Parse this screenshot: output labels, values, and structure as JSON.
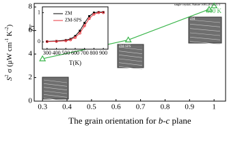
{
  "chart_data": [
    {
      "type": "line",
      "x_label": [
        "The grain orientation for ",
        "b-c",
        " plane"
      ],
      "y_label": [
        "S",
        "2",
        " σ (μW cm",
        "-1",
        " K",
        "-2",
        ")"
      ],
      "xlim": [
        0.266,
        1.047
      ],
      "ylim": [
        0,
        8.3
      ],
      "xticks": [
        0.3,
        0.4,
        0.5,
        0.6,
        0.7,
        0.8,
        0.9,
        1.0
      ],
      "yticks": [
        0,
        2,
        4,
        6,
        8
      ],
      "series": [
        {
          "name": "800 K",
          "color": "#39b54a",
          "x": [
            0.3,
            0.65,
            0.98
          ],
          "values": [
            3.6,
            5.2,
            7.8
          ]
        },
        {
          "name": "single crystal, Nature 508 (2014) 373",
          "color": "#39b54a",
          "x": [
            1.0
          ],
          "values": [
            8.1
          ]
        }
      ],
      "image_labels": [
        "ZM-SPS",
        "ZM"
      ]
    },
    {
      "type": "line",
      "x_label": "T(K)",
      "y_label": "ZT",
      "xlim": [
        250,
        950
      ],
      "ylim": [
        -0.25,
        1.2
      ],
      "xticks": [
        300,
        400,
        500,
        600,
        700,
        800,
        900
      ],
      "yticks": [
        0,
        1
      ],
      "series": [
        {
          "name": "ZM",
          "color": "#000000",
          "x": [
            300,
            400,
            500,
            550,
            600,
            650,
            700,
            750,
            800,
            850,
            900
          ],
          "values": [
            0.02,
            0.03,
            0.06,
            0.1,
            0.2,
            0.38,
            0.65,
            0.88,
            1.0,
            1.02,
            1.02
          ]
        },
        {
          "name": "ZM-SPS",
          "color": "#e8343c",
          "x": [
            300,
            400,
            500,
            550,
            600,
            650,
            700,
            750,
            800,
            850,
            900
          ],
          "values": [
            0.01,
            0.02,
            0.04,
            0.07,
            0.15,
            0.3,
            0.55,
            0.8,
            0.95,
            1.0,
            1.0
          ]
        }
      ]
    }
  ]
}
